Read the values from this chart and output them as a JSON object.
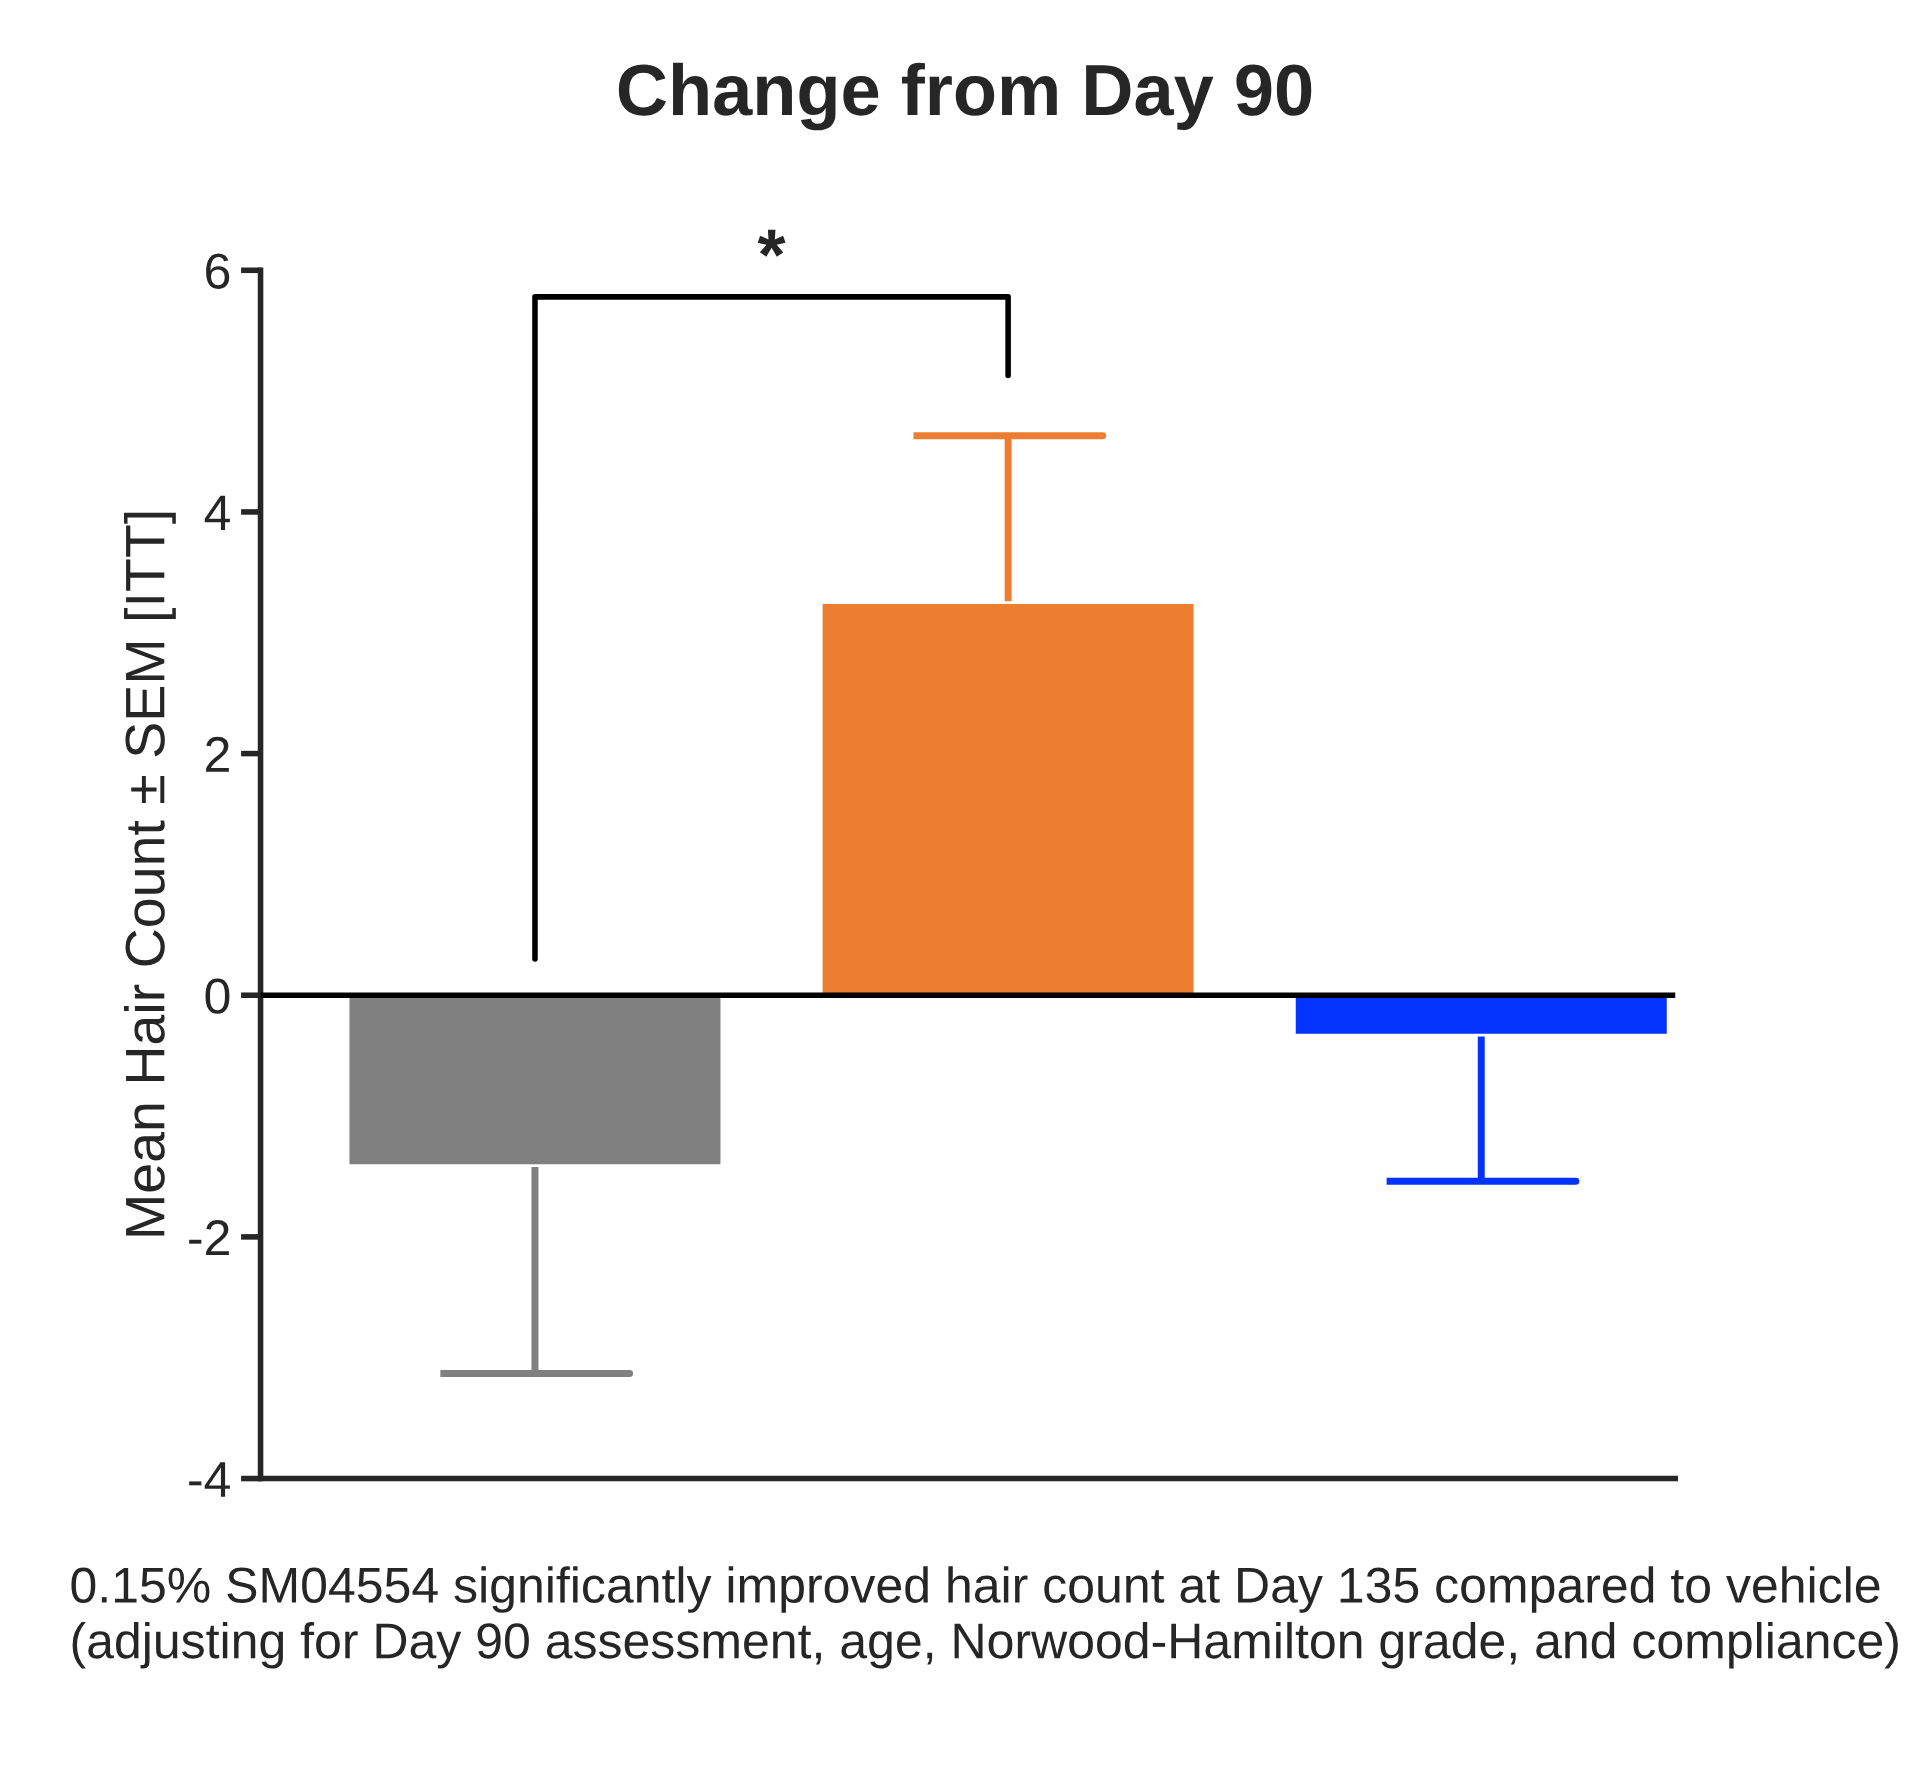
{
  "chart_data": {
    "type": "bar",
    "title": "Change from Day 90",
    "ylabel": "Mean Hair Count ± SEM [ITT]",
    "categories": [
      null,
      null,
      null
    ],
    "values": [
      -1.41,
      3.25,
      -0.33
    ],
    "colors": [
      "#808080",
      "#ed7d31",
      "#0433ff"
    ],
    "errors": [
      [
        -3.13,
        -1.41
      ],
      [
        3.25,
        4.63
      ],
      [
        -1.54,
        -0.33
      ]
    ],
    "ylim": [
      -4,
      6
    ],
    "yticks": [
      -4,
      -2,
      0,
      2,
      4,
      6
    ],
    "grid": false,
    "legend": false,
    "ref_lines": [
      {
        "axis": "y",
        "value": 0,
        "color": "#000000"
      }
    ],
    "annotations": [
      "*",
      "0.15% SM04554 significantly improved hair count at Day 135 compared to vehicle (adjusting for Day 90 assessment, age, Norwood-Hamilton grade, and compliance)"
    ]
  }
}
